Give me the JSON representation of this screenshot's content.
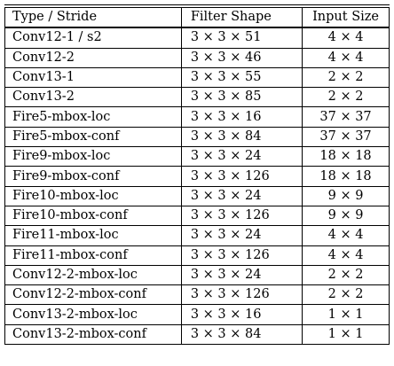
{
  "table": {
    "headers": [
      "Type / Stride",
      "Filter Shape",
      "Input Size"
    ],
    "rows": [
      [
        "Conv12-1 / s2",
        "3 × 3 × 51",
        "4 × 4"
      ],
      [
        "Conv12-2",
        "3 × 3 × 46",
        "4 × 4"
      ],
      [
        "Conv13-1",
        "3 × 3 × 55",
        "2 × 2"
      ],
      [
        "Conv13-2",
        "3 × 3 × 85",
        "2 × 2"
      ],
      [
        "Fire5-mbox-loc",
        "3 × 3 × 16",
        "37 × 37"
      ],
      [
        "Fire5-mbox-conf",
        "3 × 3 × 84",
        "37 × 37"
      ],
      [
        "Fire9-mbox-loc",
        "3 × 3 × 24",
        "18 × 18"
      ],
      [
        "Fire9-mbox-conf",
        "3 × 3 × 126",
        "18 × 18"
      ],
      [
        "Fire10-mbox-loc",
        "3 × 3 × 24",
        "9 × 9"
      ],
      [
        "Fire10-mbox-conf",
        "3 × 3 × 126",
        "9 × 9"
      ],
      [
        "Fire11-mbox-loc",
        "3 × 3 × 24",
        "4 × 4"
      ],
      [
        "Fire11-mbox-conf",
        "3 × 3 × 126",
        "4 × 4"
      ],
      [
        "Conv12-2-mbox-loc",
        "3 × 3 × 24",
        "2 × 2"
      ],
      [
        "Conv12-2-mbox-conf",
        "3 × 3 × 126",
        "2 × 2"
      ],
      [
        "Conv13-2-mbox-loc",
        "3 × 3 × 16",
        "1 × 1"
      ],
      [
        "Conv13-2-mbox-conf",
        "3 × 3 × 84",
        "1 × 1"
      ]
    ]
  }
}
